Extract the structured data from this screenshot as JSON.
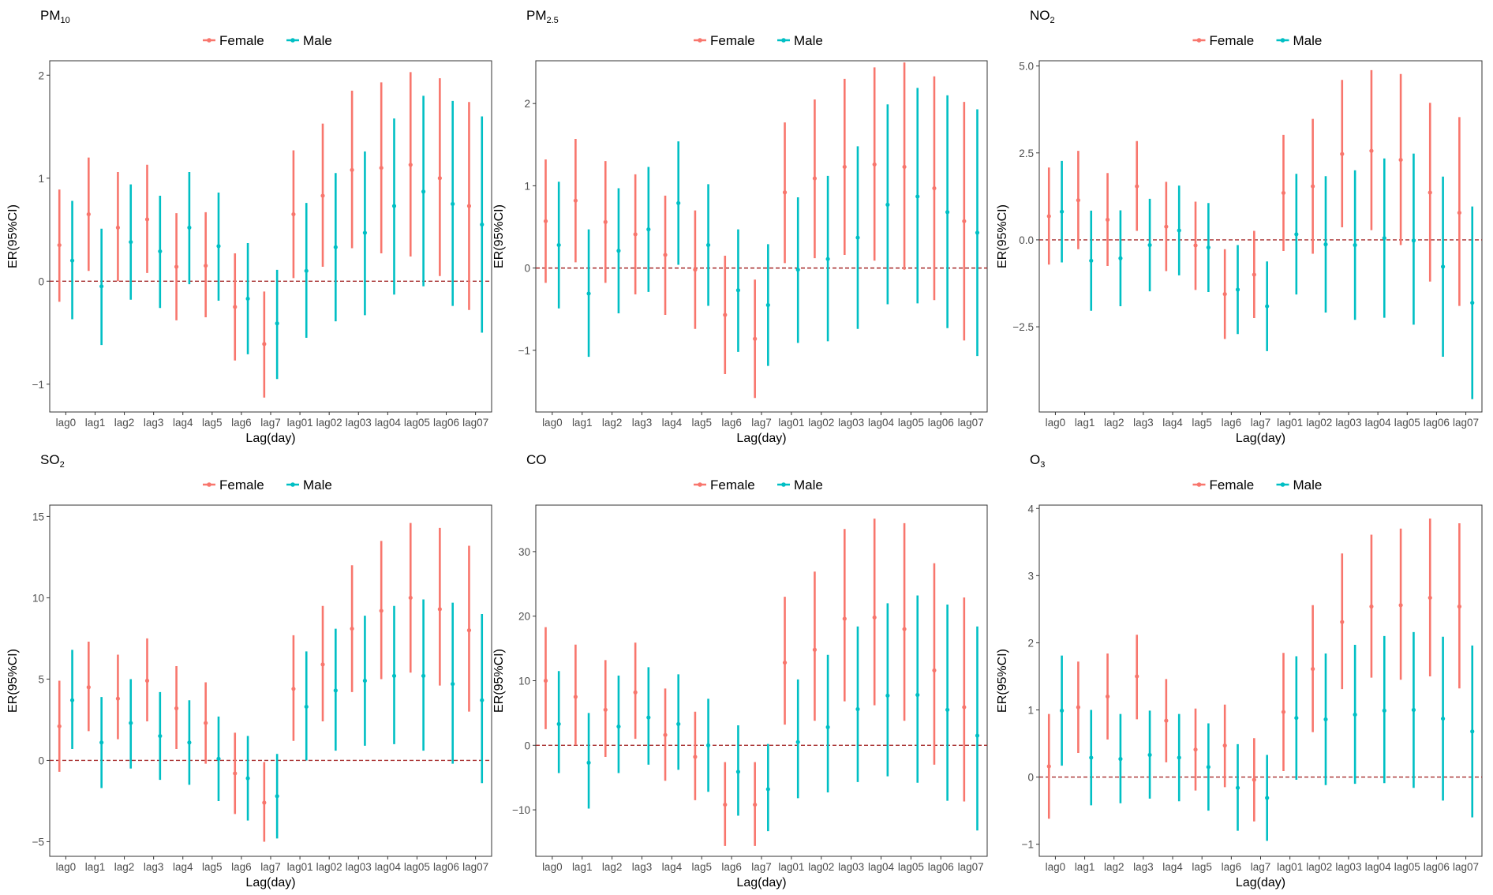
{
  "figure": {
    "legend": {
      "entries": [
        {
          "label": "Female",
          "color": "#F8766D"
        },
        {
          "label": "Male",
          "color": "#00BFC4"
        }
      ]
    },
    "reference_line_color": "#A52A2A"
  },
  "chart_data": [
    {
      "type": "errorbar",
      "title_main": "PM",
      "title_sub": "10",
      "xlabel": "Lag(day)",
      "ylabel": "ER(95%CI)",
      "ylim": [
        -1.27,
        2.14
      ],
      "yticks": [
        -1,
        0,
        1,
        2
      ],
      "yticklabels": [
        "−1",
        "0",
        "1",
        "2"
      ],
      "categories": [
        "lag0",
        "lag1",
        "lag2",
        "lag3",
        "lag4",
        "lag5",
        "lag6",
        "lag7",
        "lag01",
        "lag02",
        "lag03",
        "lag04",
        "lag05",
        "lag06",
        "lag07"
      ],
      "series": [
        {
          "name": "Female",
          "values": [
            0.35,
            0.65,
            0.52,
            0.6,
            0.14,
            0.15,
            -0.25,
            -0.61,
            0.65,
            0.83,
            1.08,
            1.1,
            1.13,
            1.0,
            0.73
          ],
          "lower": [
            -0.2,
            0.1,
            0.0,
            0.08,
            -0.38,
            -0.35,
            -0.77,
            -1.13,
            0.03,
            0.14,
            0.32,
            0.27,
            0.24,
            0.05,
            -0.28
          ],
          "upper": [
            0.89,
            1.2,
            1.06,
            1.13,
            0.66,
            0.67,
            0.27,
            -0.1,
            1.27,
            1.53,
            1.85,
            1.93,
            2.03,
            1.97,
            1.74
          ]
        },
        {
          "name": "Male",
          "values": [
            0.2,
            -0.05,
            0.38,
            0.29,
            0.52,
            0.34,
            -0.17,
            -0.41,
            0.1,
            0.33,
            0.47,
            0.73,
            0.87,
            0.75,
            0.55
          ],
          "lower": [
            -0.37,
            -0.62,
            -0.18,
            -0.26,
            -0.03,
            -0.19,
            -0.71,
            -0.95,
            -0.55,
            -0.39,
            -0.33,
            -0.13,
            -0.05,
            -0.24,
            -0.5
          ],
          "upper": [
            0.78,
            0.51,
            0.94,
            0.83,
            1.06,
            0.86,
            0.37,
            0.11,
            0.76,
            1.05,
            1.26,
            1.58,
            1.8,
            1.75,
            1.6
          ]
        }
      ]
    },
    {
      "type": "errorbar",
      "title_main": "PM",
      "title_sub": "2.5",
      "xlabel": "Lag(day)",
      "ylabel": "ER(95%CI)",
      "ylim": [
        -1.75,
        2.52
      ],
      "yticks": [
        -1,
        0,
        1,
        2
      ],
      "yticklabels": [
        "−1",
        "0",
        "1",
        "2"
      ],
      "categories": [
        "lag0",
        "lag1",
        "lag2",
        "lag3",
        "lag4",
        "lag5",
        "lag6",
        "lag7",
        "lag01",
        "lag02",
        "lag03",
        "lag04",
        "lag05",
        "lag06",
        "lag07"
      ],
      "series": [
        {
          "name": "Female",
          "values": [
            0.57,
            0.82,
            0.56,
            0.41,
            0.16,
            -0.02,
            -0.57,
            -0.86,
            0.92,
            1.09,
            1.23,
            1.26,
            1.23,
            0.97,
            0.57
          ],
          "lower": [
            -0.18,
            0.07,
            -0.18,
            -0.32,
            -0.57,
            -0.74,
            -1.29,
            -1.58,
            0.06,
            0.12,
            0.16,
            0.09,
            -0.02,
            -0.39,
            -0.88
          ],
          "upper": [
            1.32,
            1.57,
            1.3,
            1.14,
            0.88,
            0.7,
            0.15,
            -0.14,
            1.77,
            2.05,
            2.3,
            2.44,
            2.5,
            2.33,
            2.02
          ]
        },
        {
          "name": "Male",
          "values": [
            0.28,
            -0.31,
            0.21,
            0.47,
            0.79,
            0.28,
            -0.27,
            -0.45,
            -0.02,
            0.11,
            0.37,
            0.77,
            0.87,
            0.68,
            0.43
          ],
          "lower": [
            -0.49,
            -1.08,
            -0.55,
            -0.29,
            0.04,
            -0.46,
            -1.02,
            -1.19,
            -0.91,
            -0.89,
            -0.74,
            -0.44,
            -0.43,
            -0.73,
            -1.07
          ],
          "upper": [
            1.05,
            0.47,
            0.97,
            1.23,
            1.54,
            1.02,
            0.47,
            0.29,
            0.86,
            1.12,
            1.48,
            1.99,
            2.19,
            2.1,
            1.93
          ]
        }
      ]
    },
    {
      "type": "errorbar",
      "title_main": "NO",
      "title_sub": "2",
      "xlabel": "Lag(day)",
      "ylabel": "ER(95%CI)",
      "ylim": [
        -4.95,
        5.15
      ],
      "yticks": [
        -2.5,
        0,
        2.5,
        5
      ],
      "yticklabels": [
        "−2.5",
        "0.0",
        "2.5",
        "5.0"
      ],
      "categories": [
        "lag0",
        "lag1",
        "lag2",
        "lag3",
        "lag4",
        "lag5",
        "lag6",
        "lag7",
        "lag01",
        "lag02",
        "lag03",
        "lag04",
        "lag05",
        "lag06",
        "lag07"
      ],
      "series": [
        {
          "name": "Female",
          "values": [
            0.68,
            1.14,
            0.58,
            1.54,
            0.38,
            -0.16,
            -1.56,
            -1.0,
            1.35,
            1.54,
            2.47,
            2.56,
            2.3,
            1.36,
            0.78
          ],
          "lower": [
            -0.71,
            -0.27,
            -0.75,
            0.26,
            -0.9,
            -1.44,
            -2.85,
            -2.25,
            -0.32,
            -0.4,
            0.36,
            0.28,
            -0.15,
            -1.2,
            -1.9
          ],
          "upper": [
            2.08,
            2.56,
            1.92,
            2.84,
            1.67,
            1.1,
            -0.27,
            0.26,
            3.02,
            3.48,
            4.6,
            4.88,
            4.77,
            3.94,
            3.53
          ]
        },
        {
          "name": "Male",
          "values": [
            0.81,
            -0.6,
            -0.53,
            -0.15,
            0.27,
            -0.22,
            -1.43,
            -1.91,
            0.16,
            -0.13,
            -0.15,
            0.05,
            -0.02,
            -0.77,
            -1.81
          ],
          "lower": [
            -0.65,
            -2.04,
            -1.91,
            -1.48,
            -1.02,
            -1.5,
            -2.71,
            -3.2,
            -1.57,
            -2.09,
            -2.3,
            -2.24,
            -2.44,
            -3.36,
            -4.58
          ],
          "upper": [
            2.27,
            0.84,
            0.85,
            1.18,
            1.56,
            1.06,
            -0.15,
            -0.62,
            1.9,
            1.83,
            2.0,
            2.34,
            2.48,
            1.82,
            0.96
          ]
        }
      ]
    },
    {
      "type": "errorbar",
      "title_main": "SO",
      "title_sub": "2",
      "xlabel": "Lag(day)",
      "ylabel": "ER(95%CI)",
      "ylim": [
        -5.9,
        15.7
      ],
      "yticks": [
        -5,
        0,
        5,
        10,
        15
      ],
      "yticklabels": [
        "−5",
        "0",
        "5",
        "10",
        "15"
      ],
      "categories": [
        "lag0",
        "lag1",
        "lag2",
        "lag3",
        "lag4",
        "lag5",
        "lag6",
        "lag7",
        "lag01",
        "lag02",
        "lag03",
        "lag04",
        "lag05",
        "lag06",
        "lag07"
      ],
      "series": [
        {
          "name": "Female",
          "values": [
            2.1,
            4.5,
            3.8,
            4.9,
            3.2,
            2.3,
            -0.8,
            -2.6,
            4.4,
            5.9,
            8.1,
            9.2,
            10.0,
            9.3,
            8.0
          ],
          "lower": [
            -0.7,
            1.8,
            1.3,
            2.4,
            0.7,
            -0.2,
            -3.3,
            -5.0,
            1.2,
            2.4,
            4.2,
            5.0,
            5.4,
            4.6,
            3.0
          ],
          "upper": [
            4.9,
            7.3,
            6.5,
            7.5,
            5.8,
            4.8,
            1.7,
            -0.1,
            7.7,
            9.5,
            12.0,
            13.5,
            14.6,
            14.3,
            13.2
          ]
        },
        {
          "name": "Male",
          "values": [
            3.7,
            1.1,
            2.3,
            1.5,
            1.1,
            0.1,
            -1.1,
            -2.2,
            3.3,
            4.3,
            4.9,
            5.2,
            5.2,
            4.7,
            3.7
          ],
          "lower": [
            0.7,
            -1.7,
            -0.5,
            -1.2,
            -1.5,
            -2.5,
            -3.7,
            -4.8,
            0.0,
            0.6,
            0.9,
            1.0,
            0.6,
            -0.2,
            -1.4
          ],
          "upper": [
            6.8,
            3.9,
            5.0,
            4.2,
            3.7,
            2.7,
            1.5,
            0.4,
            6.7,
            8.1,
            8.9,
            9.5,
            9.9,
            9.7,
            9.0
          ]
        }
      ]
    },
    {
      "type": "errorbar",
      "title_main": "CO",
      "title_sub": "",
      "xlabel": "Lag(day)",
      "ylabel": "ER(95%CI)",
      "ylim": [
        -17.2,
        37.2
      ],
      "yticks": [
        -10,
        0,
        10,
        20,
        30
      ],
      "yticklabels": [
        "−10",
        "0",
        "10",
        "20",
        "30"
      ],
      "categories": [
        "lag0",
        "lag1",
        "lag2",
        "lag3",
        "lag4",
        "lag5",
        "lag6",
        "lag7",
        "lag01",
        "lag02",
        "lag03",
        "lag04",
        "lag05",
        "lag06",
        "lag07"
      ],
      "series": [
        {
          "name": "Female",
          "values": [
            10.0,
            7.5,
            5.5,
            8.2,
            1.6,
            -1.8,
            -9.2,
            -9.2,
            12.8,
            14.8,
            19.6,
            19.8,
            18.0,
            11.6,
            5.9
          ],
          "lower": [
            2.5,
            0.0,
            -1.8,
            1.0,
            -5.5,
            -8.5,
            -15.6,
            -15.6,
            3.2,
            3.8,
            6.8,
            6.2,
            3.8,
            -3.0,
            -8.7
          ],
          "upper": [
            18.3,
            15.6,
            13.2,
            15.9,
            8.8,
            5.2,
            -2.6,
            -2.6,
            23.0,
            26.9,
            33.5,
            35.1,
            34.4,
            28.2,
            22.9
          ]
        },
        {
          "name": "Male",
          "values": [
            3.3,
            -2.7,
            2.9,
            4.3,
            3.3,
            0.0,
            -4.1,
            -6.8,
            0.5,
            2.8,
            5.6,
            7.7,
            7.8,
            5.5,
            1.5
          ],
          "lower": [
            -4.3,
            -9.8,
            -4.3,
            -3.0,
            -3.8,
            -7.2,
            -10.9,
            -13.3,
            -8.2,
            -7.3,
            -5.7,
            -4.8,
            -5.8,
            -8.6,
            -13.2
          ],
          "upper": [
            11.5,
            5.0,
            10.8,
            12.1,
            11.0,
            7.2,
            3.1,
            0.2,
            10.2,
            14.0,
            18.4,
            22.0,
            23.2,
            21.8,
            18.4
          ]
        }
      ]
    },
    {
      "type": "errorbar",
      "title_main": "O",
      "title_sub": "3",
      "xlabel": "Lag(day)",
      "ylabel": "ER(95%CI)",
      "ylim": [
        -1.18,
        4.05
      ],
      "yticks": [
        -1,
        0,
        1,
        2,
        3,
        4
      ],
      "yticklabels": [
        "−1",
        "0",
        "1",
        "2",
        "3",
        "4"
      ],
      "categories": [
        "lag0",
        "lag1",
        "lag2",
        "lag3",
        "lag4",
        "lag5",
        "lag6",
        "lag7",
        "lag01",
        "lag02",
        "lag03",
        "lag04",
        "lag05",
        "lag06",
        "lag07"
      ],
      "series": [
        {
          "name": "Female",
          "values": [
            0.16,
            1.04,
            1.2,
            1.5,
            0.84,
            0.41,
            0.47,
            -0.04,
            0.97,
            1.61,
            2.31,
            2.54,
            2.56,
            2.67,
            2.54
          ],
          "lower": [
            -0.62,
            0.36,
            0.56,
            0.86,
            0.22,
            -0.2,
            -0.15,
            -0.66,
            0.09,
            0.67,
            1.31,
            1.48,
            1.45,
            1.5,
            1.32
          ],
          "upper": [
            0.94,
            1.72,
            1.84,
            2.12,
            1.46,
            1.02,
            1.08,
            0.58,
            1.85,
            2.56,
            3.33,
            3.61,
            3.7,
            3.85,
            3.78
          ]
        },
        {
          "name": "Male",
          "values": [
            0.99,
            0.29,
            0.27,
            0.33,
            0.29,
            0.15,
            -0.16,
            -0.31,
            0.88,
            0.86,
            0.93,
            0.99,
            1.0,
            0.87,
            0.68
          ],
          "lower": [
            0.17,
            -0.42,
            -0.39,
            -0.32,
            -0.36,
            -0.5,
            -0.8,
            -0.95,
            -0.04,
            -0.12,
            -0.1,
            -0.09,
            -0.16,
            -0.35,
            -0.6
          ],
          "upper": [
            1.81,
            1.0,
            0.94,
            0.99,
            0.94,
            0.8,
            0.49,
            0.33,
            1.8,
            1.84,
            1.97,
            2.1,
            2.16,
            2.09,
            1.96
          ]
        }
      ]
    }
  ]
}
